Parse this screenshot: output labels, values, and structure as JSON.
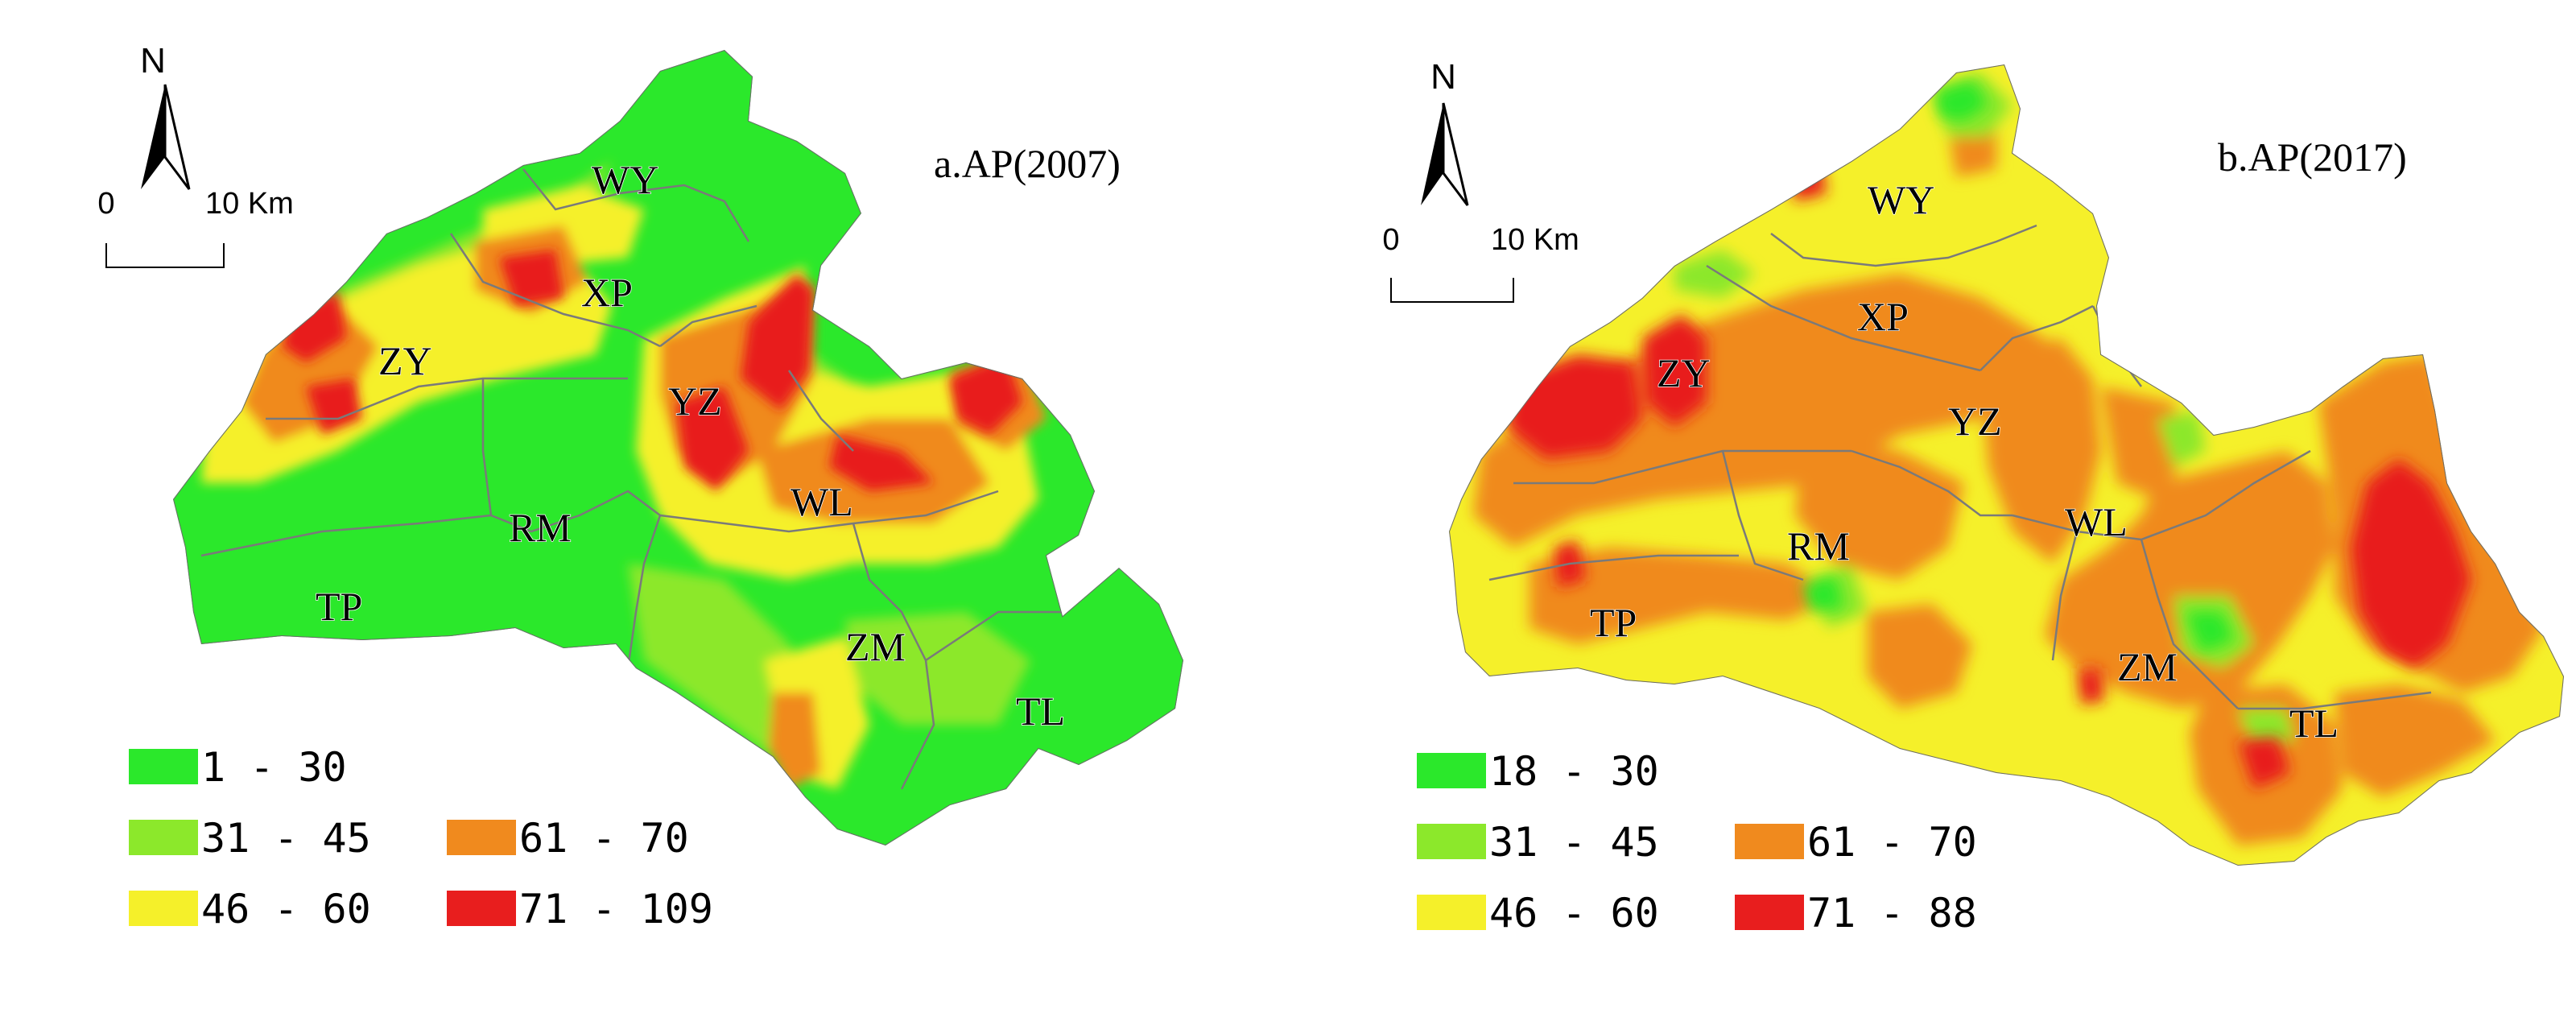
{
  "maps": [
    {
      "title": "a.AP(2007)",
      "north_label": "N",
      "scale": {
        "start_label": "0",
        "end_label": "10 Km"
      },
      "districts": {
        "WY": "WY",
        "XP": "XP",
        "ZY": "ZY",
        "YZ": "YZ",
        "WL": "WL",
        "RM": "RM",
        "TP": "TP",
        "ZM": "ZM",
        "TL": "TL"
      },
      "legend": [
        {
          "label": "1 - 30",
          "color": "#2BE82B"
        },
        {
          "label": "31 - 45",
          "color": "#8CE82B"
        },
        {
          "label": "46 - 60",
          "color": "#F5F02A"
        },
        {
          "label": "61 - 70",
          "color": "#F08A1E"
        },
        {
          "label": "71 - 109",
          "color": "#E81E1E"
        }
      ]
    },
    {
      "title": "b.AP(2017)",
      "north_label": "N",
      "scale": {
        "start_label": "0",
        "end_label": "10 Km"
      },
      "districts": {
        "WY": "WY",
        "XP": "XP",
        "ZY": "ZY",
        "YZ": "YZ",
        "WL": "WL",
        "RM": "RM",
        "TP": "TP",
        "ZM": "ZM",
        "TL": "TL"
      },
      "legend": [
        {
          "label": "18 - 30",
          "color": "#2BE82B"
        },
        {
          "label": "31 - 45",
          "color": "#8CE82B"
        },
        {
          "label": "46 - 60",
          "color": "#F5F02A"
        },
        {
          "label": "61 - 70",
          "color": "#F08A1E"
        },
        {
          "label": "71 - 88",
          "color": "#E81E1E"
        }
      ]
    }
  ]
}
